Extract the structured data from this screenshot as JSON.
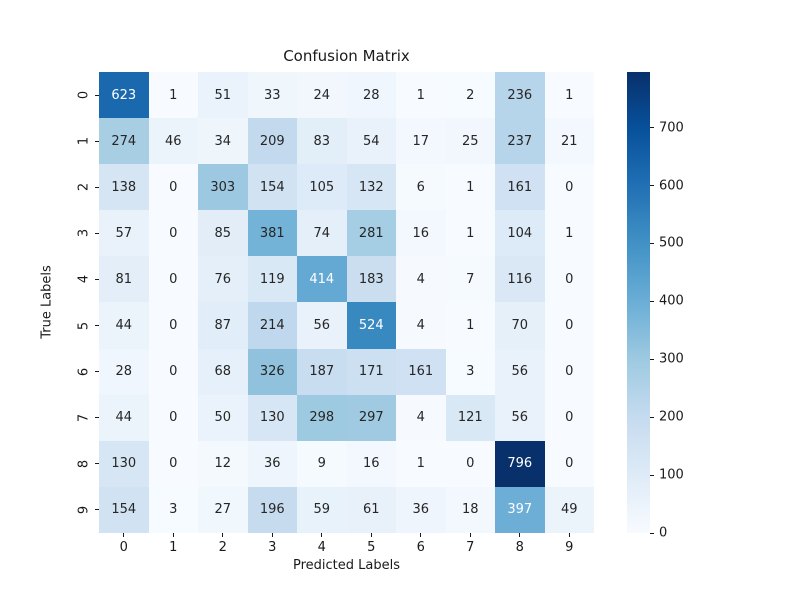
{
  "figure": {
    "background": "#ffffff",
    "text_color": "#1a1a1a"
  },
  "chart_data": {
    "type": "heatmap",
    "title": "Confusion Matrix",
    "xlabel": "Predicted Labels",
    "ylabel": "True Labels",
    "x_tick_labels": [
      "0",
      "1",
      "2",
      "3",
      "4",
      "5",
      "6",
      "7",
      "8",
      "9"
    ],
    "y_tick_labels": [
      "0",
      "1",
      "2",
      "3",
      "4",
      "5",
      "6",
      "7",
      "8",
      "9"
    ],
    "matrix": [
      [
        623,
        1,
        51,
        33,
        24,
        28,
        1,
        2,
        236,
        1
      ],
      [
        274,
        46,
        34,
        209,
        83,
        54,
        17,
        25,
        237,
        21
      ],
      [
        138,
        0,
        303,
        154,
        105,
        132,
        6,
        1,
        161,
        0
      ],
      [
        57,
        0,
        85,
        381,
        74,
        281,
        16,
        1,
        104,
        1
      ],
      [
        81,
        0,
        76,
        119,
        414,
        183,
        4,
        7,
        116,
        0
      ],
      [
        44,
        0,
        87,
        214,
        56,
        524,
        4,
        1,
        70,
        0
      ],
      [
        28,
        0,
        68,
        326,
        187,
        171,
        161,
        3,
        56,
        0
      ],
      [
        44,
        0,
        50,
        130,
        298,
        297,
        4,
        121,
        56,
        0
      ],
      [
        130,
        0,
        12,
        36,
        9,
        16,
        1,
        0,
        796,
        0
      ],
      [
        154,
        3,
        27,
        196,
        59,
        61,
        36,
        18,
        397,
        49
      ]
    ],
    "vmin": 0,
    "vmax": 796,
    "colormap": "Blues",
    "colormap_stops": [
      "#f7fbff",
      "#deebf7",
      "#c6dbef",
      "#9ecae1",
      "#6baed6",
      "#4292c6",
      "#2171b5",
      "#08519c",
      "#08306b"
    ],
    "annotations": true,
    "annot_dark_color": "#262626",
    "annot_light_color": "#ffffff",
    "grid": false,
    "colorbar": {
      "position": "right",
      "ticks": [
        0,
        100,
        200,
        300,
        400,
        500,
        600,
        700
      ]
    }
  }
}
